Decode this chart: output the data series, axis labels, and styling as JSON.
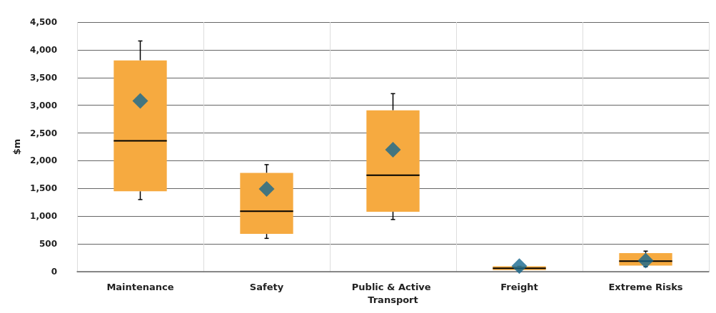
{
  "chart_data": {
    "type": "box",
    "ylabel": "$m",
    "categories": [
      "Maintenance",
      "Safety",
      "Public & Active Transport",
      "Freight",
      "Extreme Risks"
    ],
    "ylim": [
      0,
      4500
    ],
    "yticks": [
      0,
      500,
      {
        "value": 1000,
        "label": "1,000"
      },
      {
        "value": 1500,
        "label": "1,500"
      },
      {
        "value": 2000,
        "label": "2,000"
      },
      {
        "value": 2500,
        "label": "2,500"
      },
      {
        "value": 3000,
        "label": "3,000"
      },
      {
        "value": 3500,
        "label": "3,500"
      },
      {
        "value": 4000,
        "label": "4,000"
      },
      {
        "value": 4500,
        "label": "4,500"
      }
    ],
    "grid": true,
    "series": [
      {
        "color": "#f6aa40",
        "boxes": [
          {
            "low": 1300,
            "q1": 1450,
            "median": 2360,
            "q3": 3810,
            "high": 4160
          },
          {
            "low": 600,
            "q1": 680,
            "median": 1090,
            "q3": 1780,
            "high": 1930
          },
          {
            "low": 940,
            "q1": 1080,
            "median": 1740,
            "q3": 2910,
            "high": 3210
          },
          {
            "low": 30,
            "q1": 30,
            "median": 60,
            "q3": 95,
            "high": 95
          },
          {
            "low": 90,
            "q1": 110,
            "median": 190,
            "q3": 335,
            "high": 370
          }
        ]
      },
      {
        "type": "scatter",
        "marker": "diamond",
        "color": "#17688f",
        "x": [
          "Maintenance",
          "Safety",
          "Public & Active Transport",
          "Freight",
          "Extreme Risks"
        ],
        "values": [
          3080,
          1490,
          2200,
          100,
          200
        ]
      }
    ]
  }
}
